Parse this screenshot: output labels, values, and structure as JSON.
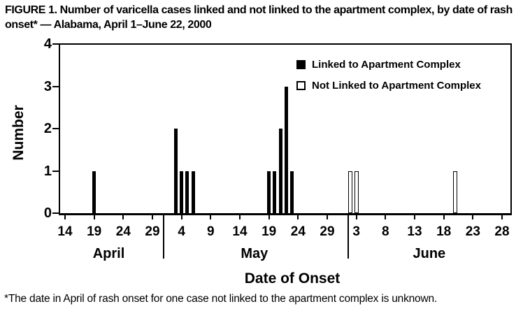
{
  "colors": {
    "ink": "#000000",
    "paper": "#ffffff"
  },
  "chart_data": {
    "type": "bar",
    "title": "FIGURE 1. Number of varicella cases linked and not linked to the apartment complex, by date of rash onset* — Alabama, April 1–June 22, 2000",
    "footnote": "*The date in April of rash onset for one case not linked to the apartment complex is unknown.",
    "xlabel": "Date of Onset",
    "ylabel": "Number",
    "ylim": [
      0,
      4
    ],
    "yticks": [
      0,
      1,
      2,
      3,
      4
    ],
    "grid": false,
    "legend_position": "top-right-inside",
    "legend": [
      {
        "label": "Linked to Apartment Complex",
        "fill": "#000000"
      },
      {
        "label": "Not Linked to Apartment Complex",
        "fill": "#ffffff"
      }
    ],
    "x_axis": {
      "unit": "date of rash onset (2000)",
      "months": [
        {
          "label": "April",
          "ticks": [
            14,
            19,
            24,
            29
          ]
        },
        {
          "label": "May",
          "ticks": [
            4,
            9,
            14,
            19,
            24,
            29
          ]
        },
        {
          "label": "June",
          "ticks": [
            3,
            8,
            13,
            18,
            23,
            28
          ]
        }
      ]
    },
    "series": [
      {
        "name": "Linked to Apartment Complex",
        "fill": "#000000",
        "points": [
          {
            "month": "April",
            "day": 19,
            "value": 1
          },
          {
            "month": "May",
            "day": 3,
            "value": 2
          },
          {
            "month": "May",
            "day": 4,
            "value": 1
          },
          {
            "month": "May",
            "day": 5,
            "value": 1
          },
          {
            "month": "May",
            "day": 6,
            "value": 1
          },
          {
            "month": "May",
            "day": 19,
            "value": 1
          },
          {
            "month": "May",
            "day": 20,
            "value": 1
          },
          {
            "month": "May",
            "day": 21,
            "value": 2
          },
          {
            "month": "May",
            "day": 22,
            "value": 3
          },
          {
            "month": "May",
            "day": 23,
            "value": 1
          }
        ]
      },
      {
        "name": "Not Linked to Apartment Complex",
        "fill": "#ffffff",
        "points": [
          {
            "month": "June",
            "day": 2,
            "value": 1
          },
          {
            "month": "June",
            "day": 3,
            "value": 1
          },
          {
            "month": "June",
            "day": 20,
            "value": 1
          }
        ]
      }
    ]
  }
}
